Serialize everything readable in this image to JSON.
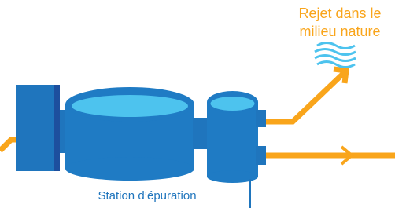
{
  "labels": {
    "outlet": [
      "Rejet dans le",
      "milieu nature"
    ],
    "station": "Station d’épuration"
  }
}
